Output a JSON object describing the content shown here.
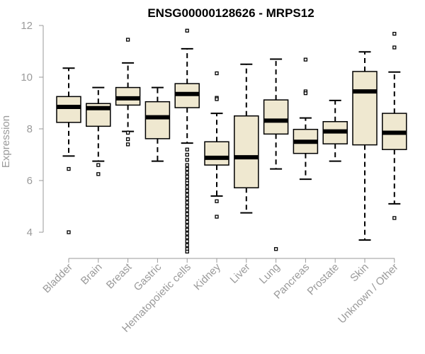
{
  "chart_data": {
    "type": "boxplot",
    "title": "ENSG00000128626 - MRPS12",
    "xlabel": "",
    "ylabel": "Expression",
    "ylim": [
      3.2,
      12.2
    ],
    "yticks": [
      4,
      6,
      8,
      10,
      12
    ],
    "ytick_labels": [
      "4",
      "6",
      "8",
      "10",
      "12"
    ],
    "box_fill": "#efe8d0",
    "stroke_color": "#000000",
    "axis_color": "#9a9a9a",
    "categories": [
      "Bladder",
      "Brain",
      "Breast",
      "Gastric",
      "Hematopoietic cells",
      "Kidney",
      "Liver",
      "Lung",
      "Pancreas",
      "Prostate",
      "Skin",
      "Unknown / Other"
    ],
    "boxes": [
      {
        "q1": 8.25,
        "median": 8.85,
        "q3": 9.25,
        "wlow": 6.95,
        "whigh": 10.35,
        "outliers": [
          6.45,
          4.0
        ]
      },
      {
        "q1": 8.1,
        "median": 8.8,
        "q3": 8.98,
        "wlow": 6.75,
        "whigh": 9.6,
        "outliers": [
          6.6,
          6.25
        ]
      },
      {
        "q1": 8.92,
        "median": 9.18,
        "q3": 9.6,
        "wlow": 7.9,
        "whigh": 10.55,
        "outliers": [
          11.45,
          7.85,
          7.6,
          7.4
        ]
      },
      {
        "q1": 7.62,
        "median": 8.45,
        "q3": 9.05,
        "wlow": 6.75,
        "whigh": 9.6,
        "outliers": []
      },
      {
        "q1": 8.82,
        "median": 9.35,
        "q3": 9.75,
        "wlow": 7.45,
        "whigh": 11.1,
        "outliers": [
          11.8,
          7.2,
          7.0,
          6.8,
          6.6,
          6.45,
          6.3,
          6.15,
          6.0,
          5.9,
          5.75,
          5.6,
          5.45,
          5.3,
          5.15,
          5.0,
          4.85,
          4.7,
          4.55,
          4.4,
          4.25,
          4.1,
          3.95,
          3.8,
          3.65,
          3.5,
          3.35,
          3.25
        ]
      },
      {
        "q1": 6.6,
        "median": 6.88,
        "q3": 7.5,
        "wlow": 5.4,
        "whigh": 8.6,
        "outliers": [
          10.15,
          9.2,
          9.15,
          5.2,
          4.6
        ]
      },
      {
        "q1": 5.72,
        "median": 6.9,
        "q3": 8.5,
        "wlow": 4.75,
        "whigh": 10.5,
        "outliers": []
      },
      {
        "q1": 7.8,
        "median": 8.32,
        "q3": 9.12,
        "wlow": 6.45,
        "whigh": 10.7,
        "outliers": [
          3.35
        ]
      },
      {
        "q1": 7.05,
        "median": 7.5,
        "q3": 7.98,
        "wlow": 6.05,
        "whigh": 8.42,
        "outliers": [
          10.68,
          9.45,
          9.38
        ]
      },
      {
        "q1": 7.42,
        "median": 7.9,
        "q3": 8.28,
        "wlow": 6.75,
        "whigh": 9.1,
        "outliers": []
      },
      {
        "q1": 7.38,
        "median": 9.45,
        "q3": 10.22,
        "wlow": 3.7,
        "whigh": 10.98,
        "outliers": []
      },
      {
        "q1": 7.2,
        "median": 7.85,
        "q3": 8.6,
        "wlow": 5.1,
        "whigh": 10.2,
        "outliers": [
          11.68,
          11.15,
          4.55
        ]
      }
    ]
  }
}
